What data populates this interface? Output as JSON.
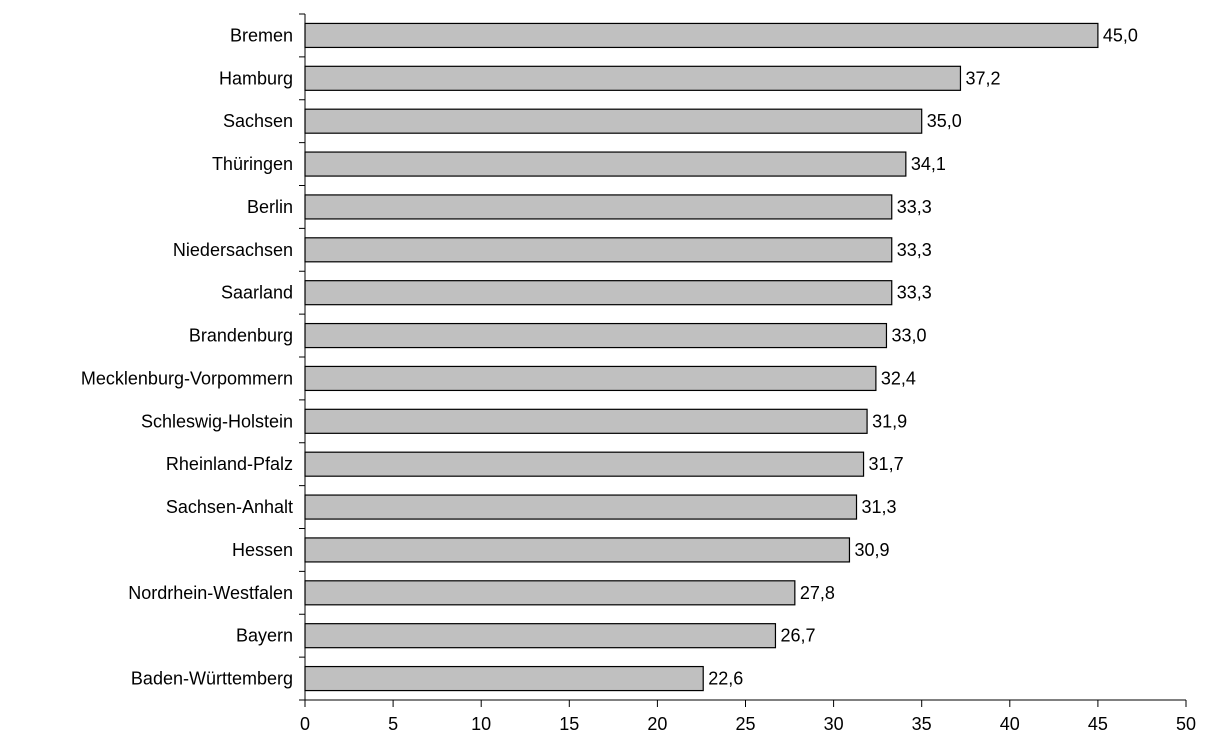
{
  "chart_data": {
    "type": "bar",
    "orientation": "horizontal",
    "categories": [
      "Bremen",
      "Hamburg",
      "Sachsen",
      "Thüringen",
      "Berlin",
      "Niedersachsen",
      "Saarland",
      "Brandenburg",
      "Mecklenburg-Vorpommern",
      "Schleswig-Holstein",
      "Rheinland-Pfalz",
      "Sachsen-Anhalt",
      "Hessen",
      "Nordrhein-Westfalen",
      "Bayern",
      "Baden-Württemberg"
    ],
    "values": [
      45.0,
      37.2,
      35.0,
      34.1,
      33.3,
      33.3,
      33.3,
      33.0,
      32.4,
      31.9,
      31.7,
      31.3,
      30.9,
      27.8,
      26.7,
      22.6
    ],
    "value_labels": [
      "45,0",
      "37,2",
      "35,0",
      "34,1",
      "33,3",
      "33,3",
      "33,3",
      "33,0",
      "32,4",
      "31,9",
      "31,7",
      "31,3",
      "30,9",
      "27,8",
      "26,7",
      "22,6"
    ],
    "xlim": [
      0,
      50
    ],
    "xticks": [
      "0",
      "5",
      "10",
      "15",
      "20",
      "25",
      "30",
      "35",
      "40",
      "45",
      "50"
    ],
    "grid": false,
    "legend": "none",
    "bar_color": "#c0c0c0",
    "bar_border_color": "#000000"
  }
}
